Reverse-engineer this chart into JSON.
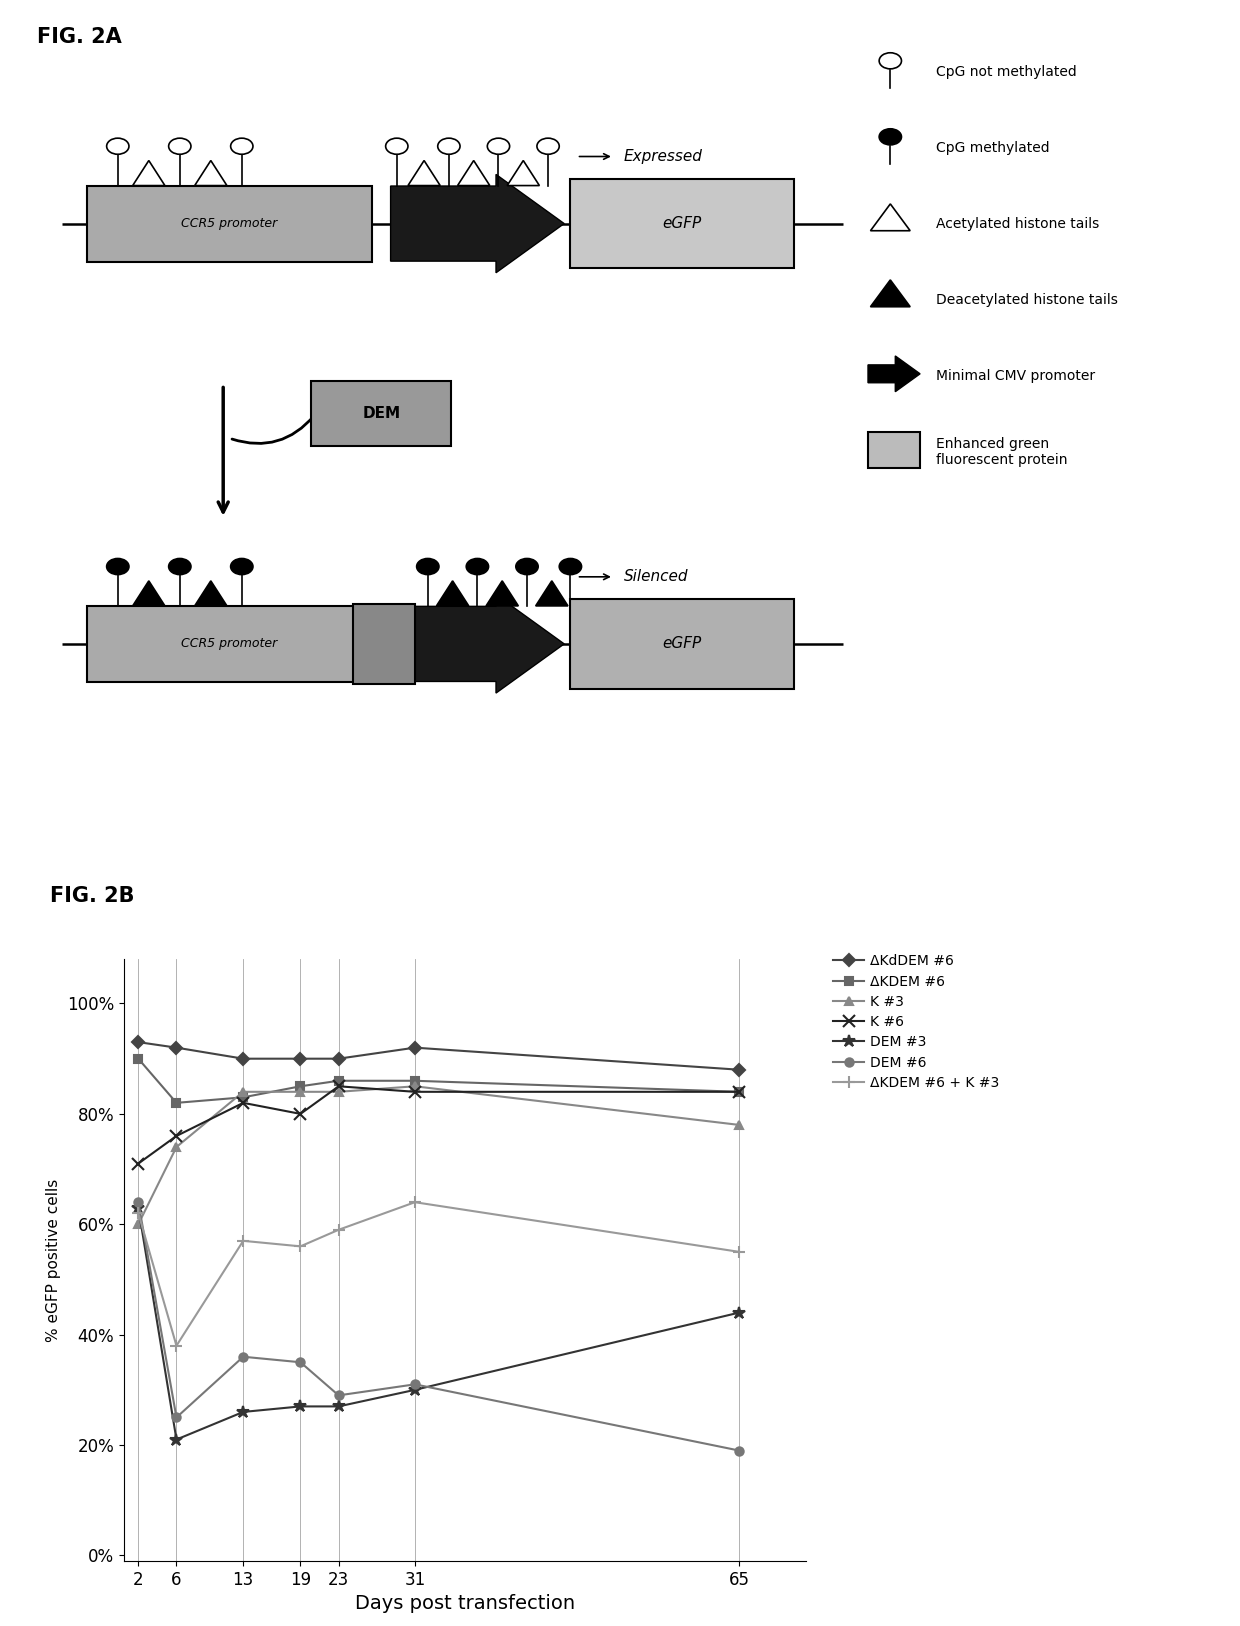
{
  "fig2a_title": "FIG. 2A",
  "fig2b_title": "FIG. 2B",
  "legend_items": [
    "CpG not methylated",
    "CpG methylated",
    "Acetylated histone tails",
    "Deacetylated histone tails",
    "Minimal CMV promoter",
    "Enhanced green\nfluorescent protein"
  ],
  "days": [
    2,
    6,
    13,
    19,
    23,
    31,
    65
  ],
  "series": {
    "ΔKdDEM #6": [
      0.93,
      0.92,
      0.9,
      0.9,
      0.9,
      0.92,
      0.88
    ],
    "ΔKDEM #6": [
      0.9,
      0.82,
      0.83,
      0.85,
      0.86,
      0.86,
      0.84
    ],
    "K #3": [
      0.6,
      0.74,
      0.84,
      0.84,
      0.84,
      0.85,
      0.78
    ],
    "K #6": [
      0.71,
      0.76,
      0.82,
      0.8,
      0.85,
      0.84,
      0.84
    ],
    "DEM #3": [
      0.63,
      0.21,
      0.26,
      0.27,
      0.27,
      0.3,
      0.44
    ],
    "DEM #6": [
      0.64,
      0.25,
      0.36,
      0.35,
      0.29,
      0.31,
      0.19
    ],
    "ΔKDEM #6 + K #3": [
      0.62,
      0.38,
      0.57,
      0.56,
      0.59,
      0.64,
      0.55
    ]
  },
  "markers": {
    "ΔKdDEM #6": "D",
    "ΔKDEM #6": "s",
    "K #3": "^",
    "K #6": "x",
    "DEM #3": "*",
    "DEM #6": "o",
    "ΔKDEM #6 + K #3": "+"
  },
  "line_colors": {
    "ΔKdDEM #6": "#444444",
    "ΔKDEM #6": "#666666",
    "K #3": "#888888",
    "K #6": "#222222",
    "DEM #3": "#333333",
    "DEM #6": "#777777",
    "ΔKDEM #6 + K #3": "#999999"
  },
  "ylabel": "% eGFP positive cells",
  "xlabel": "Days post transfection",
  "yticks": [
    0.0,
    0.2,
    0.4,
    0.6,
    0.8,
    1.0
  ],
  "ytick_labels": [
    "0%",
    "20%",
    "40%",
    "60%",
    "80%",
    "100%"
  ],
  "background_color": "#ffffff"
}
